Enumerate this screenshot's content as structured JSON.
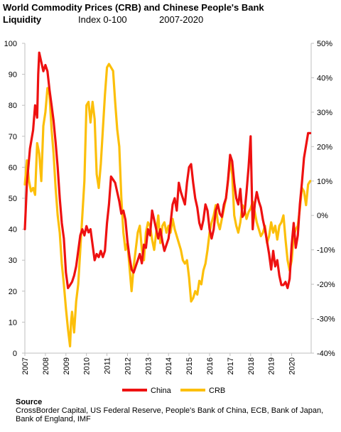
{
  "header": {
    "title": "World Commodity Prices (CRB) and Chinese People's Bank",
    "title_cont": "Liquidity",
    "index_note": "Index 0-100",
    "period": "2007-2020"
  },
  "source": {
    "label": "Source",
    "text": "CrossBorder Capital, US Federal Reserve, People's Bank of China, ECB, Bank of Japan, Bank of England, IMF"
  },
  "colors": {
    "china": "#ee1111",
    "crb": "#fcbf0a",
    "axis": "#bfbfbf"
  },
  "chart_data": {
    "type": "line",
    "x_ticks": [
      "2007",
      "2008",
      "2009",
      "2010",
      "2011",
      "2012",
      "2013",
      "2014",
      "2015",
      "2016",
      "2017",
      "2018",
      "2019",
      "2020"
    ],
    "xlim": [
      2007,
      2020.95
    ],
    "y_left": {
      "range": [
        0,
        100
      ],
      "ticks": [
        "0",
        "10",
        "20",
        "30",
        "40",
        "50",
        "60",
        "70",
        "80",
        "90",
        "100"
      ]
    },
    "y_right": {
      "range": [
        -40,
        50
      ],
      "ticks": [
        "-40%",
        "-30%",
        "-20%",
        "-10%",
        "0%",
        "10%",
        "20%",
        "30%",
        "40%",
        "50%"
      ]
    },
    "legend": "bottom",
    "grid": false,
    "series": [
      {
        "name": "China",
        "axis": "left",
        "points": [
          [
            2007.0,
            40
          ],
          [
            2007.1,
            55
          ],
          [
            2007.25,
            66
          ],
          [
            2007.4,
            72
          ],
          [
            2007.5,
            80
          ],
          [
            2007.6,
            76
          ],
          [
            2007.65,
            90
          ],
          [
            2007.7,
            97
          ],
          [
            2007.8,
            94
          ],
          [
            2007.9,
            91
          ],
          [
            2008.0,
            93
          ],
          [
            2008.1,
            91
          ],
          [
            2008.2,
            85
          ],
          [
            2008.3,
            80
          ],
          [
            2008.4,
            75
          ],
          [
            2008.5,
            68
          ],
          [
            2008.6,
            60
          ],
          [
            2008.7,
            50
          ],
          [
            2008.8,
            42
          ],
          [
            2008.9,
            37
          ],
          [
            2009.0,
            26
          ],
          [
            2009.1,
            21
          ],
          [
            2009.2,
            22
          ],
          [
            2009.3,
            23
          ],
          [
            2009.4,
            25
          ],
          [
            2009.5,
            28
          ],
          [
            2009.6,
            33
          ],
          [
            2009.7,
            38
          ],
          [
            2009.8,
            40
          ],
          [
            2009.9,
            38
          ],
          [
            2010.0,
            41
          ],
          [
            2010.1,
            39
          ],
          [
            2010.2,
            40
          ],
          [
            2010.3,
            35
          ],
          [
            2010.4,
            30
          ],
          [
            2010.5,
            32
          ],
          [
            2010.6,
            31
          ],
          [
            2010.7,
            33
          ],
          [
            2010.8,
            31
          ],
          [
            2010.9,
            33
          ],
          [
            2011.0,
            42
          ],
          [
            2011.1,
            48
          ],
          [
            2011.2,
            57
          ],
          [
            2011.3,
            56
          ],
          [
            2011.4,
            55
          ],
          [
            2011.5,
            52
          ],
          [
            2011.6,
            49
          ],
          [
            2011.7,
            45
          ],
          [
            2011.8,
            46
          ],
          [
            2011.9,
            43
          ],
          [
            2012.0,
            36
          ],
          [
            2012.1,
            31
          ],
          [
            2012.2,
            27
          ],
          [
            2012.3,
            26
          ],
          [
            2012.4,
            28
          ],
          [
            2012.5,
            30
          ],
          [
            2012.6,
            32
          ],
          [
            2012.7,
            29
          ],
          [
            2012.8,
            35
          ],
          [
            2012.9,
            34
          ],
          [
            2013.0,
            40
          ],
          [
            2013.1,
            38
          ],
          [
            2013.2,
            46
          ],
          [
            2013.3,
            43
          ],
          [
            2013.4,
            40
          ],
          [
            2013.5,
            37
          ],
          [
            2013.6,
            40
          ],
          [
            2013.7,
            36
          ],
          [
            2013.8,
            33
          ],
          [
            2013.9,
            35
          ],
          [
            2014.0,
            37
          ],
          [
            2014.1,
            42
          ],
          [
            2014.2,
            48
          ],
          [
            2014.3,
            50
          ],
          [
            2014.4,
            46
          ],
          [
            2014.5,
            55
          ],
          [
            2014.6,
            52
          ],
          [
            2014.7,
            50
          ],
          [
            2014.8,
            48
          ],
          [
            2014.9,
            55
          ],
          [
            2015.0,
            60
          ],
          [
            2015.1,
            61
          ],
          [
            2015.2,
            55
          ],
          [
            2015.3,
            50
          ],
          [
            2015.4,
            47
          ],
          [
            2015.5,
            42
          ],
          [
            2015.6,
            40
          ],
          [
            2015.7,
            43
          ],
          [
            2015.8,
            48
          ],
          [
            2015.9,
            46
          ],
          [
            2016.0,
            40
          ],
          [
            2016.1,
            37
          ],
          [
            2016.2,
            40
          ],
          [
            2016.3,
            46
          ],
          [
            2016.4,
            48
          ],
          [
            2016.5,
            45
          ],
          [
            2016.6,
            44
          ],
          [
            2016.7,
            48
          ],
          [
            2016.8,
            50
          ],
          [
            2016.9,
            56
          ],
          [
            2017.0,
            64
          ],
          [
            2017.1,
            62
          ],
          [
            2017.2,
            55
          ],
          [
            2017.3,
            50
          ],
          [
            2017.4,
            48
          ],
          [
            2017.5,
            53
          ],
          [
            2017.6,
            44
          ],
          [
            2017.7,
            45
          ],
          [
            2017.8,
            52
          ],
          [
            2017.9,
            60
          ],
          [
            2018.0,
            70
          ],
          [
            2018.05,
            55
          ],
          [
            2018.1,
            40
          ],
          [
            2018.2,
            48
          ],
          [
            2018.3,
            52
          ],
          [
            2018.4,
            49
          ],
          [
            2018.5,
            47
          ],
          [
            2018.6,
            43
          ],
          [
            2018.7,
            40
          ],
          [
            2018.8,
            36
          ],
          [
            2018.9,
            32
          ],
          [
            2019.0,
            27
          ],
          [
            2019.1,
            33
          ],
          [
            2019.2,
            28
          ],
          [
            2019.3,
            30
          ],
          [
            2019.4,
            25
          ],
          [
            2019.5,
            22
          ],
          [
            2019.6,
            22
          ],
          [
            2019.7,
            23
          ],
          [
            2019.8,
            21
          ],
          [
            2019.9,
            24
          ],
          [
            2020.0,
            35
          ],
          [
            2020.1,
            42
          ],
          [
            2020.2,
            34
          ],
          [
            2020.3,
            38
          ],
          [
            2020.4,
            48
          ],
          [
            2020.5,
            55
          ],
          [
            2020.6,
            63
          ],
          [
            2020.7,
            67
          ],
          [
            2020.8,
            71
          ],
          [
            2020.9,
            71
          ]
        ]
      },
      {
        "name": "CRB",
        "axis": "right",
        "points": [
          [
            2007.0,
            9
          ],
          [
            2007.1,
            16
          ],
          [
            2007.2,
            10
          ],
          [
            2007.3,
            7
          ],
          [
            2007.4,
            8
          ],
          [
            2007.5,
            6
          ],
          [
            2007.6,
            21
          ],
          [
            2007.7,
            18
          ],
          [
            2007.8,
            10
          ],
          [
            2007.9,
            26
          ],
          [
            2008.0,
            30
          ],
          [
            2008.1,
            37
          ],
          [
            2008.2,
            35
          ],
          [
            2008.3,
            25
          ],
          [
            2008.4,
            18
          ],
          [
            2008.5,
            8
          ],
          [
            2008.6,
            0
          ],
          [
            2008.7,
            -5
          ],
          [
            2008.8,
            -14
          ],
          [
            2008.9,
            -20
          ],
          [
            2009.0,
            -27
          ],
          [
            2009.1,
            -33
          ],
          [
            2009.2,
            -38
          ],
          [
            2009.25,
            -31
          ],
          [
            2009.3,
            -28
          ],
          [
            2009.4,
            -34
          ],
          [
            2009.5,
            -25
          ],
          [
            2009.6,
            -20
          ],
          [
            2009.7,
            -10
          ],
          [
            2009.8,
            0
          ],
          [
            2009.9,
            10
          ],
          [
            2010.0,
            32
          ],
          [
            2010.1,
            33
          ],
          [
            2010.2,
            27
          ],
          [
            2010.3,
            33
          ],
          [
            2010.4,
            28
          ],
          [
            2010.5,
            12
          ],
          [
            2010.6,
            8
          ],
          [
            2010.7,
            15
          ],
          [
            2010.8,
            25
          ],
          [
            2010.9,
            35
          ],
          [
            2011.0,
            43
          ],
          [
            2011.1,
            44
          ],
          [
            2011.2,
            43
          ],
          [
            2011.3,
            42
          ],
          [
            2011.4,
            33
          ],
          [
            2011.5,
            25
          ],
          [
            2011.6,
            20
          ],
          [
            2011.7,
            5
          ],
          [
            2011.8,
            -5
          ],
          [
            2011.9,
            -10
          ],
          [
            2012.0,
            -8
          ],
          [
            2012.1,
            -15
          ],
          [
            2012.2,
            -22
          ],
          [
            2012.3,
            -15
          ],
          [
            2012.4,
            -10
          ],
          [
            2012.5,
            -5
          ],
          [
            2012.6,
            -3
          ],
          [
            2012.7,
            -10
          ],
          [
            2012.8,
            -13
          ],
          [
            2012.9,
            -5
          ],
          [
            2013.0,
            -2
          ],
          [
            2013.1,
            -3
          ],
          [
            2013.2,
            -7
          ],
          [
            2013.3,
            -10
          ],
          [
            2013.4,
            -5
          ],
          [
            2013.5,
            0
          ],
          [
            2013.6,
            -8
          ],
          [
            2013.7,
            -3
          ],
          [
            2013.8,
            -2
          ],
          [
            2013.9,
            -5
          ],
          [
            2014.0,
            -3
          ],
          [
            2014.1,
            -5
          ],
          [
            2014.2,
            -1
          ],
          [
            2014.3,
            -4
          ],
          [
            2014.4,
            -6
          ],
          [
            2014.5,
            -8
          ],
          [
            2014.6,
            -10
          ],
          [
            2014.7,
            -13
          ],
          [
            2014.8,
            -14
          ],
          [
            2014.9,
            -13
          ],
          [
            2015.0,
            -18
          ],
          [
            2015.1,
            -25
          ],
          [
            2015.2,
            -24
          ],
          [
            2015.3,
            -22
          ],
          [
            2015.4,
            -23
          ],
          [
            2015.5,
            -19
          ],
          [
            2015.6,
            -20
          ],
          [
            2015.7,
            -16
          ],
          [
            2015.8,
            -14
          ],
          [
            2015.9,
            -10
          ],
          [
            2016.0,
            -5
          ],
          [
            2016.1,
            -2
          ],
          [
            2016.2,
            0
          ],
          [
            2016.3,
            3
          ],
          [
            2016.4,
            -2
          ],
          [
            2016.5,
            -4
          ],
          [
            2016.6,
            -1
          ],
          [
            2016.7,
            2
          ],
          [
            2016.8,
            5
          ],
          [
            2016.9,
            10
          ],
          [
            2017.0,
            16
          ],
          [
            2017.1,
            12
          ],
          [
            2017.2,
            0
          ],
          [
            2017.3,
            -3
          ],
          [
            2017.4,
            -5
          ],
          [
            2017.5,
            -2
          ],
          [
            2017.6,
            3
          ],
          [
            2017.7,
            2
          ],
          [
            2017.8,
            -1
          ],
          [
            2017.9,
            1
          ],
          [
            2018.0,
            2
          ],
          [
            2018.1,
            4
          ],
          [
            2018.2,
            1
          ],
          [
            2018.3,
            -2
          ],
          [
            2018.4,
            -4
          ],
          [
            2018.5,
            -6
          ],
          [
            2018.6,
            -5
          ],
          [
            2018.7,
            -3
          ],
          [
            2018.8,
            -8
          ],
          [
            2018.9,
            -6
          ],
          [
            2019.0,
            -2
          ],
          [
            2019.1,
            -5
          ],
          [
            2019.2,
            -3
          ],
          [
            2019.3,
            -7
          ],
          [
            2019.4,
            -3
          ],
          [
            2019.5,
            -2
          ],
          [
            2019.6,
            0
          ],
          [
            2019.7,
            -7
          ],
          [
            2019.8,
            -13
          ],
          [
            2019.9,
            -16
          ],
          [
            2020.0,
            -13
          ],
          [
            2020.1,
            -6
          ],
          [
            2020.2,
            -4
          ],
          [
            2020.3,
            -3
          ],
          [
            2020.4,
            2
          ],
          [
            2020.5,
            8
          ],
          [
            2020.6,
            7
          ],
          [
            2020.7,
            3
          ],
          [
            2020.8,
            9
          ],
          [
            2020.9,
            10
          ]
        ]
      }
    ]
  }
}
